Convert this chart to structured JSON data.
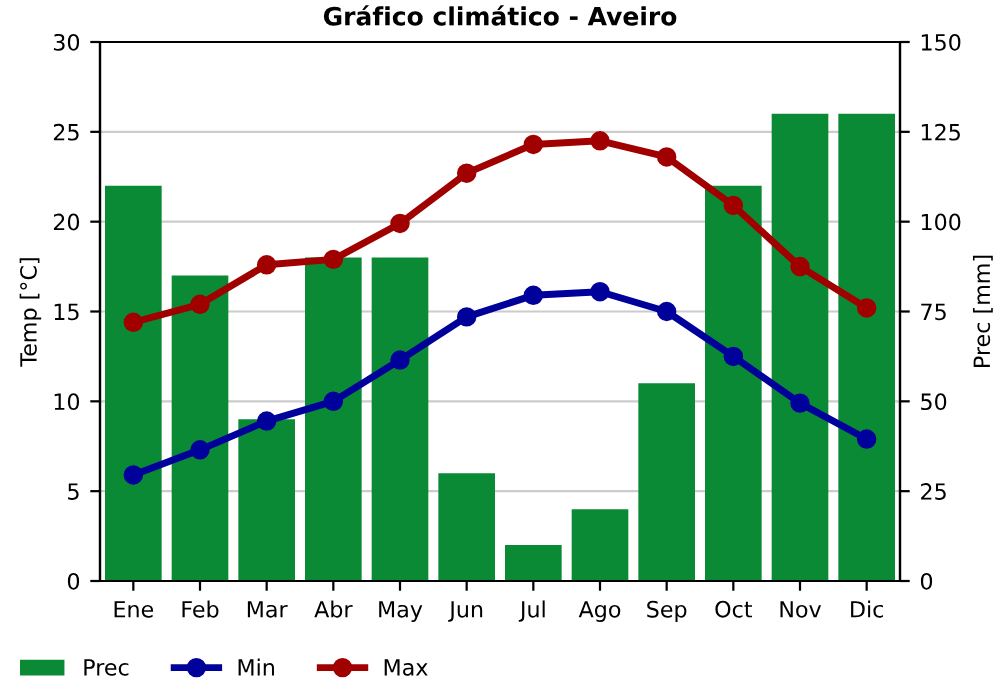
{
  "chart_data": {
    "type": "line",
    "title": "Gráfico climático - Aveiro",
    "ylabel": "Temp [°C]",
    "y2label": "Prec [mm]",
    "categories": [
      "Ene",
      "Feb",
      "Mar",
      "Abr",
      "May",
      "Jun",
      "Jul",
      "Ago",
      "Sep",
      "Oct",
      "Nov",
      "Dic"
    ],
    "series": [
      {
        "name": "Prec",
        "type": "bar",
        "axis": "y2",
        "color": "#0a8a35",
        "values": [
          110,
          85,
          45,
          90,
          90,
          30,
          10,
          20,
          55,
          110,
          130,
          130
        ]
      },
      {
        "name": "Min",
        "color": "#00009a",
        "values": [
          5.9,
          7.3,
          8.9,
          10.0,
          12.3,
          14.7,
          15.9,
          16.1,
          15.0,
          12.5,
          9.9,
          7.9
        ]
      },
      {
        "name": "Max",
        "color": "#a00000",
        "values": [
          14.4,
          15.4,
          17.6,
          17.9,
          19.9,
          22.7,
          24.3,
          24.5,
          23.6,
          20.9,
          17.5,
          15.2
        ]
      }
    ],
    "ylim": [
      0,
      30
    ],
    "yticks": [
      0,
      5,
      10,
      15,
      20,
      25,
      30
    ],
    "y2lim": [
      0,
      150
    ],
    "y2ticks": [
      0,
      25,
      50,
      75,
      100,
      125,
      150
    ],
    "grid": "y",
    "legend": "bottom",
    "marker": "circle",
    "line_style": "solid"
  }
}
